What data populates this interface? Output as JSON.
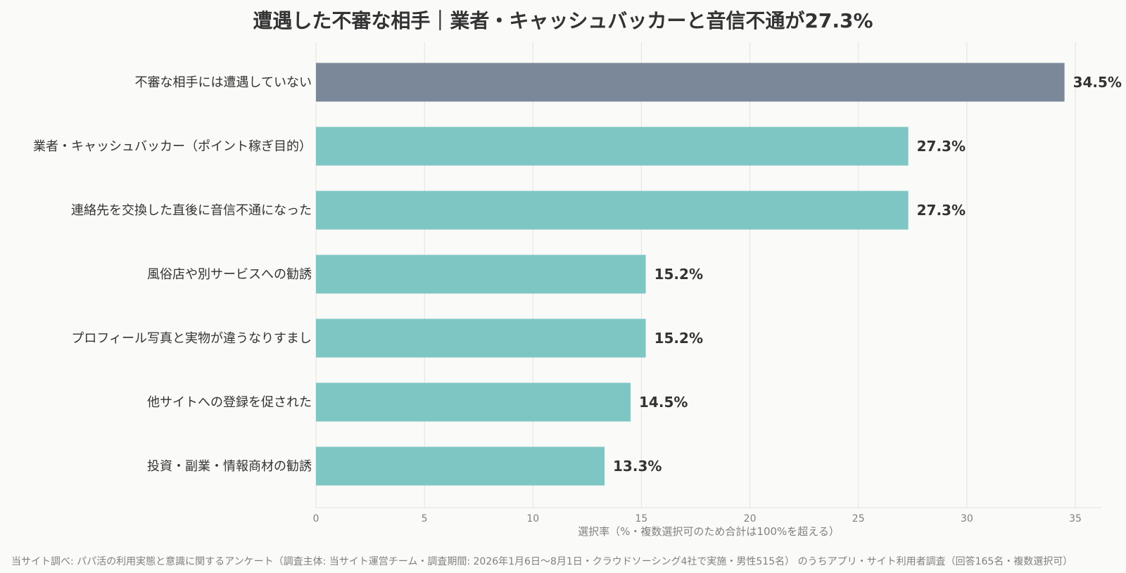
{
  "title": "遭遇した不審な相手｜業者・キャッシュバッカーと音信不通が27.3%",
  "footer": "当サイト調べ: パパ活の利用実態と意識に関するアンケート（調査主体: 当サイト運営チーム・調査期間: 2026年1月6日〜8月1日・クラウドソーシング4社で実施・男性515名） のうちアプリ・サイト利用者調査（回答165名・複数選択可）",
  "colors": {
    "background": "#fafaf8",
    "bar_highlight": "#7a8899",
    "bar_default": "#7ec6c3",
    "grid": "#e2e2e2",
    "label_text": "#333333",
    "axis_text": "#808080"
  },
  "chart_data": {
    "type": "bar",
    "orientation": "horizontal",
    "categories": [
      "不審な相手には遭遇していない",
      "業者・キャッシュバッカー（ポイント稼ぎ目的）",
      "連絡先を交換した直後に音信不通になった",
      "風俗店や別サービスへの勧誘",
      "プロフィール写真と実物が違うなりすまし",
      "他サイトへの登録を促された",
      "投資・副業・情報商材の勧誘"
    ],
    "values": [
      34.5,
      27.3,
      27.3,
      15.2,
      15.2,
      14.5,
      13.3
    ],
    "value_labels": [
      "34.5%",
      "27.3%",
      "27.3%",
      "15.2%",
      "15.2%",
      "14.5%",
      "13.3%"
    ],
    "highlight_index": 0,
    "xlabel": "選択率（%・複数選択可のため合計は100%を超える）",
    "ylabel": "",
    "xlim": [
      0,
      36.2
    ],
    "xticks": [
      0,
      5,
      10,
      15,
      20,
      25,
      30,
      35
    ],
    "grid": true
  }
}
